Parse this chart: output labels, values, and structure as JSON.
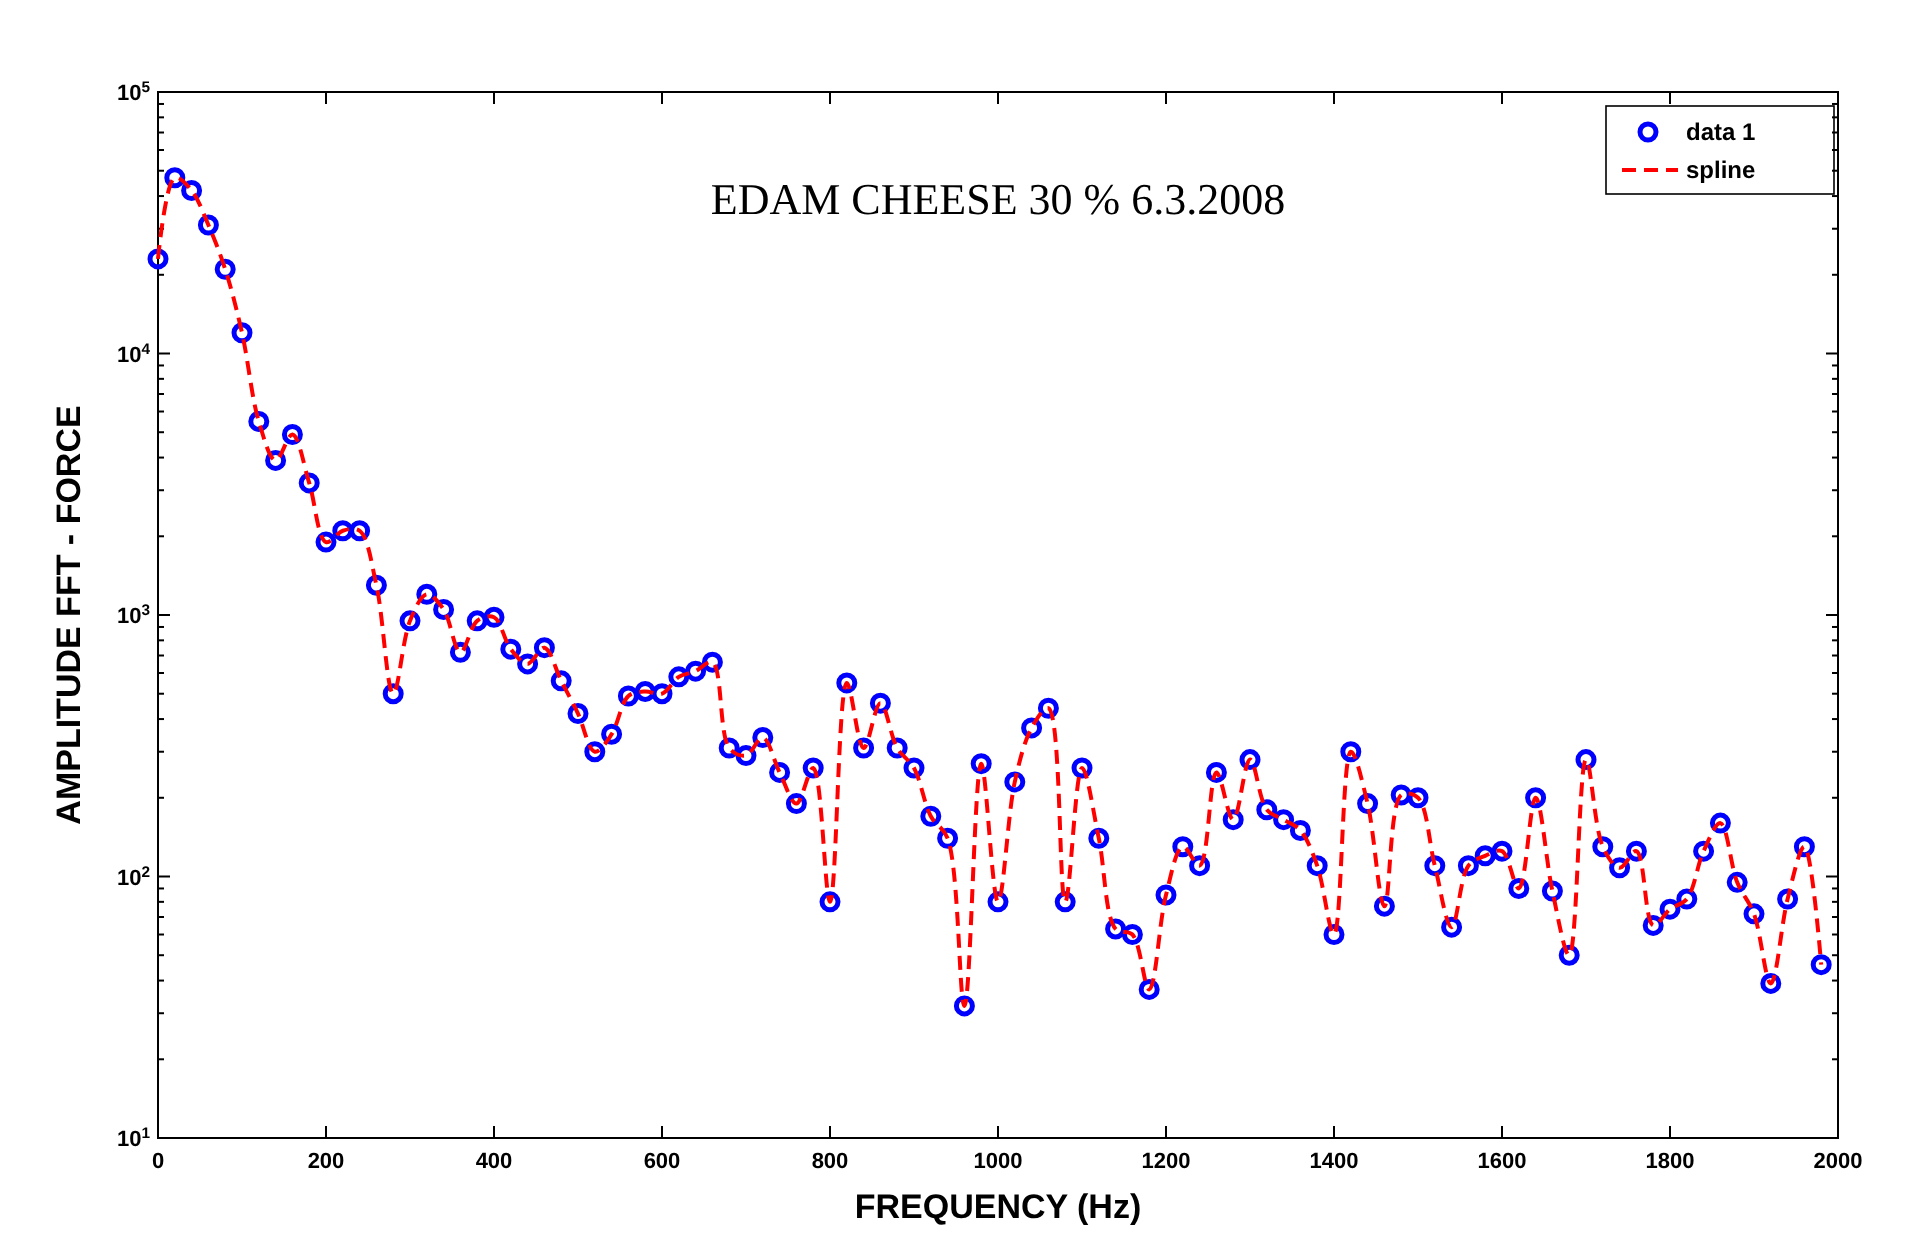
{
  "chart_data": {
    "type": "scatter",
    "title": "EDAM CHEESE 30 % 6.3.2008",
    "xlabel": "FREQUENCY (Hz)",
    "ylabel": "AMPLITUDE FFT - FORCE",
    "x": [
      0,
      20,
      40,
      60,
      80,
      100,
      120,
      140,
      160,
      180,
      200,
      220,
      240,
      260,
      280,
      300,
      320,
      340,
      360,
      380,
      400,
      420,
      440,
      460,
      480,
      500,
      520,
      540,
      560,
      580,
      600,
      620,
      640,
      660,
      680,
      700,
      720,
      740,
      760,
      780,
      800,
      820,
      840,
      860,
      880,
      900,
      920,
      940,
      960,
      980,
      1000,
      1020,
      1040,
      1060,
      1080,
      1100,
      1120,
      1140,
      1160,
      1180,
      1200,
      1220,
      1240,
      1260,
      1280,
      1300,
      1320,
      1340,
      1360,
      1380,
      1400,
      1420,
      1440,
      1460,
      1480,
      1500,
      1520,
      1540,
      1560,
      1580,
      1600,
      1620,
      1640,
      1660,
      1680,
      1700,
      1720,
      1740,
      1760,
      1780,
      1800,
      1820,
      1840,
      1860,
      1880,
      1900,
      1920,
      1940,
      1960,
      1980
    ],
    "series": [
      {
        "name": "data 1",
        "marker": "circle",
        "color": "#0000ff",
        "values": [
          23000,
          47000,
          42000,
          31000,
          21000,
          12000,
          5500,
          3900,
          4900,
          3200,
          1900,
          2100,
          2100,
          1300,
          500,
          950,
          1200,
          1050,
          720,
          950,
          980,
          740,
          650,
          750,
          560,
          420,
          300,
          350,
          490,
          510,
          500,
          580,
          610,
          660,
          310,
          290,
          340,
          250,
          190,
          260,
          80,
          550,
          310,
          460,
          310,
          260,
          170,
          140,
          32,
          270,
          80,
          230,
          370,
          440,
          80,
          260,
          140,
          63,
          60,
          37,
          85,
          130,
          110,
          250,
          165,
          280,
          180,
          165,
          150,
          110,
          60,
          300,
          190,
          77,
          205,
          200,
          110,
          64,
          110,
          120,
          125,
          90,
          200,
          88,
          50,
          280,
          130,
          108,
          125,
          65,
          75,
          82,
          125,
          160,
          95,
          72,
          39,
          82,
          130,
          46
        ]
      },
      {
        "name": "spline",
        "type": "line",
        "marker": "none",
        "line_style": "dashed",
        "color": "#ff0000",
        "values": [
          23000,
          47000,
          42000,
          31000,
          21000,
          12000,
          5500,
          3900,
          4900,
          3200,
          1900,
          2100,
          2100,
          1300,
          500,
          950,
          1200,
          1050,
          720,
          950,
          980,
          740,
          650,
          750,
          560,
          420,
          300,
          350,
          490,
          510,
          500,
          580,
          610,
          660,
          310,
          290,
          340,
          250,
          190,
          260,
          80,
          550,
          310,
          460,
          310,
          260,
          170,
          140,
          32,
          270,
          80,
          230,
          370,
          440,
          80,
          260,
          140,
          63,
          60,
          37,
          85,
          130,
          110,
          250,
          165,
          280,
          180,
          165,
          150,
          110,
          60,
          300,
          190,
          77,
          205,
          200,
          110,
          64,
          110,
          120,
          125,
          90,
          200,
          88,
          50,
          280,
          130,
          108,
          125,
          65,
          75,
          82,
          125,
          160,
          95,
          72,
          39,
          82,
          130,
          46
        ]
      }
    ],
    "log": "y",
    "xlim": [
      0,
      2000
    ],
    "xticks": [
      0,
      200,
      400,
      600,
      800,
      1000,
      1200,
      1400,
      1600,
      1800,
      2000
    ],
    "ylim": [
      10,
      100000
    ],
    "yticks": [
      {
        "value": 10,
        "label": "10$^{1}$"
      },
      {
        "value": 20,
        "label": null
      },
      {
        "value": 30,
        "label": null
      },
      {
        "value": 40,
        "label": null
      },
      {
        "value": 50,
        "label": null
      },
      {
        "value": 60,
        "label": null
      },
      {
        "value": 70,
        "label": null
      },
      {
        "value": 80,
        "label": null
      },
      {
        "value": 90,
        "label": null
      },
      {
        "value": 100,
        "label": "10$^{2}$"
      },
      {
        "value": 200,
        "label": null
      },
      {
        "value": 300,
        "label": null
      },
      {
        "value": 400,
        "label": null
      },
      {
        "value": 500,
        "label": null
      },
      {
        "value": 600,
        "label": null
      },
      {
        "value": 700,
        "label": null
      },
      {
        "value": 800,
        "label": null
      },
      {
        "value": 900,
        "label": null
      },
      {
        "value": 1000,
        "label": "10$^{3}$"
      },
      {
        "value": 2000,
        "label": null
      },
      {
        "value": 3000,
        "label": null
      },
      {
        "value": 4000,
        "label": null
      },
      {
        "value": 5000,
        "label": null
      },
      {
        "value": 6000,
        "label": null
      },
      {
        "value": 7000,
        "label": null
      },
      {
        "value": 8000,
        "label": null
      },
      {
        "value": 9000,
        "label": null
      },
      {
        "value": 10000,
        "label": "10$^{4}$"
      },
      {
        "value": 20000,
        "label": null
      },
      {
        "value": 30000,
        "label": null
      },
      {
        "value": 40000,
        "label": null
      },
      {
        "value": 50000,
        "label": null
      },
      {
        "value": 60000,
        "label": null
      },
      {
        "value": 70000,
        "label": null
      },
      {
        "value": 80000,
        "label": null
      },
      {
        "value": 90000,
        "label": null
      },
      {
        "value": 100000,
        "label": "10$^{5}$"
      }
    ],
    "grid": false,
    "legend": "top right"
  }
}
